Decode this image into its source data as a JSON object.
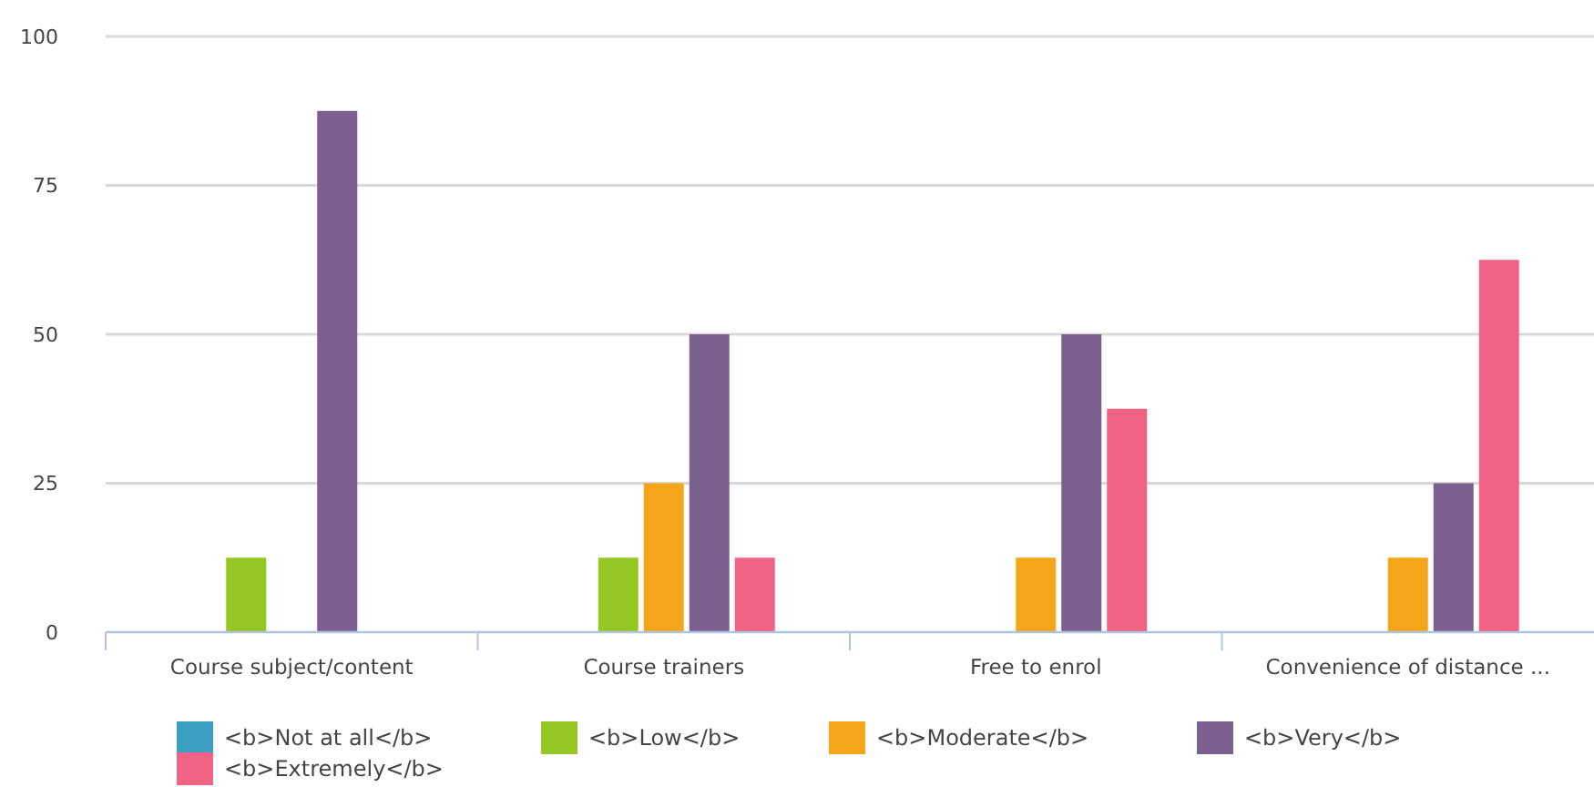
{
  "chart_data": {
    "type": "bar",
    "categories": [
      "Course subject/content",
      "Course trainers",
      "Free to enrol",
      "Convenience of distance ..."
    ],
    "series": [
      {
        "name": "<b>Not at all</b>",
        "color": "#3a9fc0",
        "values": [
          0,
          0,
          0,
          0
        ]
      },
      {
        "name": "<b>Low</b>",
        "color": "#95c623",
        "values": [
          12.5,
          12.5,
          0,
          0
        ]
      },
      {
        "name": "<b>Moderate</b>",
        "color": "#f4a519",
        "values": [
          0,
          25,
          12.5,
          12.5
        ]
      },
      {
        "name": "<b>Very</b>",
        "color": "#7c5f91",
        "values": [
          87.5,
          50,
          50,
          25
        ]
      },
      {
        "name": "<b>Extremely</b>",
        "color": "#f06385",
        "values": [
          0,
          12.5,
          37.5,
          62.5
        ]
      }
    ],
    "ylim": [
      0,
      100
    ],
    "yticks": [
      0,
      25,
      50,
      75,
      100
    ],
    "grid": "y",
    "legend": "bottom"
  }
}
